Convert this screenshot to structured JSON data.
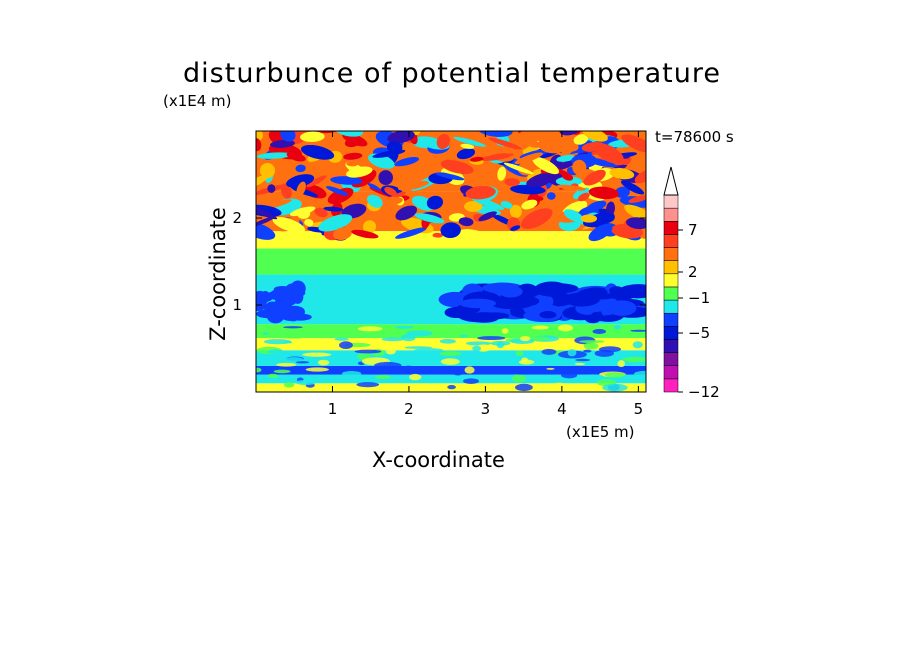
{
  "chart_data": {
    "type": "heatmap",
    "title": "disturbunce of potential temperature",
    "xlabel": "X-coordinate",
    "ylabel": "Z-coordinate",
    "x_unit": "(x1E5 m)",
    "y_unit": "(x1E4 m)",
    "annotation": "t=78600 s",
    "x_ticks": [
      "1",
      "2",
      "3",
      "4",
      "5"
    ],
    "x_tick_values": [
      1,
      2,
      3,
      4,
      5
    ],
    "y_ticks": [
      "1",
      "2"
    ],
    "y_tick_values": [
      1,
      2
    ],
    "xlim": [
      0,
      5.1
    ],
    "ylim": [
      0,
      3.0
    ],
    "colorbar": {
      "labels": [
        "7",
        "2",
        "−1",
        "−5",
        "−12"
      ],
      "label_levels": [
        7,
        2,
        -1,
        -5,
        -12
      ],
      "extend": "max",
      "colors": [
        "#ff20c0",
        "#c010b0",
        "#8010a0",
        "#3010b0",
        "#0018d8",
        "#1040ff",
        "#20e8e8",
        "#50ff50",
        "#ffff30",
        "#ffc000",
        "#ff7010",
        "#ff4020",
        "#e80010",
        "#ff9090",
        "#ffc8c8"
      ]
    },
    "z_bands": [
      {
        "zmin": 0.0,
        "zmax": 0.1,
        "level": "yellow"
      },
      {
        "zmin": 0.1,
        "zmax": 0.2,
        "level": "cyan"
      },
      {
        "zmin": 0.2,
        "zmax": 0.3,
        "level": "blue"
      },
      {
        "zmin": 0.3,
        "zmax": 0.48,
        "level": "cyan"
      },
      {
        "zmin": 0.48,
        "zmax": 0.62,
        "level": "yellow"
      },
      {
        "zmin": 0.62,
        "zmax": 0.78,
        "level": "green"
      },
      {
        "zmin": 0.78,
        "zmax": 1.35,
        "level": "cyan"
      },
      {
        "zmin": 1.35,
        "zmax": 1.65,
        "level": "green"
      },
      {
        "zmin": 1.65,
        "zmax": 1.85,
        "level": "yellow"
      },
      {
        "zmin": 1.85,
        "zmax": 2.3,
        "level": "orange"
      },
      {
        "zmin": 2.3,
        "zmax": 3.0,
        "level": "mixed"
      }
    ]
  }
}
